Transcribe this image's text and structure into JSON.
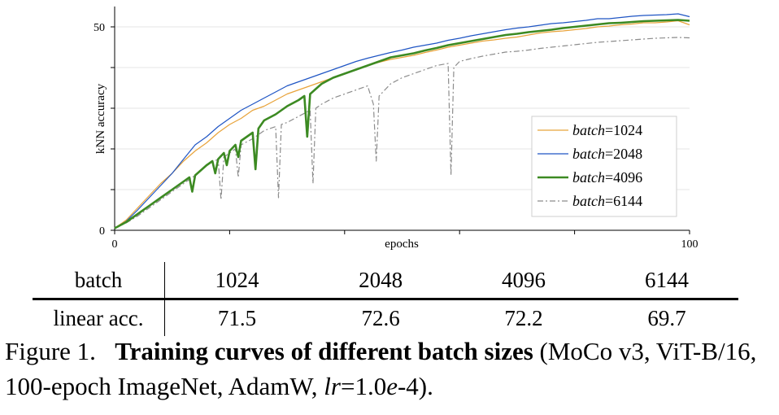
{
  "chart_data": {
    "type": "line",
    "xlabel": "epochs",
    "ylabel": "kNN accuracy",
    "xlim": [
      0,
      100
    ],
    "ylim": [
      0,
      55
    ],
    "x_ticks": [
      0,
      100
    ],
    "x_minor_ticks": [
      20,
      40,
      60,
      80
    ],
    "y_ticks": [
      0,
      50
    ],
    "y_minor_ticks": [
      10,
      20,
      30,
      40
    ],
    "grid": true,
    "legend_position": "bottom-right",
    "legend_prefix": "batch",
    "legend_sep": "=",
    "series": [
      {
        "name": "1024",
        "color": "#E8A33A",
        "style": "solid",
        "x": [
          0,
          2,
          4,
          6,
          8,
          10,
          12,
          14,
          16,
          18,
          20,
          22,
          24,
          26,
          28,
          30,
          32,
          34,
          36,
          38,
          40,
          42,
          44,
          46,
          48,
          50,
          52,
          54,
          56,
          58,
          60,
          62,
          64,
          66,
          68,
          70,
          72,
          74,
          76,
          78,
          80,
          82,
          84,
          86,
          88,
          90,
          92,
          94,
          96,
          98,
          100
        ],
        "y": [
          0.5,
          2.5,
          5.5,
          8.5,
          11.5,
          14,
          17,
          19.5,
          21.5,
          24,
          26,
          27.5,
          29.5,
          30.5,
          32,
          33.5,
          34.5,
          35.5,
          36.5,
          37.5,
          38.5,
          39.5,
          40.5,
          41.3,
          42,
          42.5,
          43,
          43.7,
          44.3,
          45,
          45.5,
          46,
          46.5,
          46.8,
          47.2,
          47.5,
          48,
          48.5,
          48.8,
          49,
          49.3,
          49.6,
          50,
          50.2,
          50.5,
          50.7,
          51,
          51,
          51.2,
          51.5,
          50.5
        ]
      },
      {
        "name": "2048",
        "color": "#1F55C4",
        "style": "solid",
        "x": [
          0,
          2,
          4,
          6,
          8,
          10,
          12,
          14,
          16,
          18,
          20,
          22,
          24,
          26,
          28,
          30,
          32,
          34,
          36,
          38,
          40,
          42,
          44,
          46,
          48,
          50,
          52,
          54,
          56,
          58,
          60,
          62,
          64,
          66,
          68,
          70,
          72,
          74,
          76,
          78,
          80,
          82,
          84,
          86,
          88,
          90,
          92,
          94,
          96,
          98,
          100
        ],
        "y": [
          0.5,
          2.2,
          5,
          8,
          11,
          14,
          17.5,
          21,
          23,
          25.5,
          27.5,
          29.5,
          31,
          32.5,
          34,
          35.5,
          36.5,
          37.5,
          38.5,
          39.5,
          40.5,
          41.5,
          42.3,
          43,
          43.7,
          44.3,
          45,
          45.5,
          46,
          46.7,
          47.2,
          47.8,
          48.3,
          48.8,
          49.3,
          49.7,
          50,
          50.4,
          50.8,
          51,
          51.3,
          51.6,
          52,
          52,
          52.3,
          52.6,
          52.8,
          52.9,
          53,
          53.2,
          52.5
        ]
      },
      {
        "name": "4096",
        "color": "#3C8A22",
        "style": "solid",
        "thick": true,
        "x": [
          0,
          2,
          4,
          6,
          8,
          10,
          12,
          13,
          13.5,
          14,
          16,
          17,
          17.5,
          18,
          19,
          19.5,
          20,
          21,
          21.5,
          22,
          24,
          24.5,
          25,
          26,
          28,
          30,
          32,
          33,
          33.5,
          34,
          36,
          38,
          40,
          42,
          44,
          46,
          48,
          50,
          52,
          54,
          56,
          58,
          60,
          62,
          64,
          66,
          68,
          70,
          72,
          74,
          76,
          78,
          80,
          82,
          84,
          86,
          88,
          90,
          92,
          94,
          96,
          98,
          100
        ],
        "y": [
          0.5,
          2,
          4,
          6,
          8,
          10,
          12,
          13,
          9.5,
          13.5,
          16,
          17,
          14,
          17.5,
          19,
          16,
          19.5,
          21,
          18,
          22,
          24,
          15,
          25,
          27,
          28.5,
          30.5,
          32,
          33,
          23,
          33.5,
          36,
          37.5,
          38.5,
          39.5,
          40.5,
          41.5,
          42.5,
          43,
          43.5,
          44.2,
          44.8,
          45.5,
          46,
          46.5,
          47,
          47.5,
          48,
          48.3,
          48.7,
          49,
          49.3,
          49.7,
          50,
          50.3,
          50.6,
          50.9,
          51,
          51.2,
          51.4,
          51.5,
          51.6,
          51.7,
          51.5
        ]
      },
      {
        "name": "6144",
        "color": "#8C8C8C",
        "style": "dashdot",
        "x": [
          0,
          2,
          4,
          6,
          8,
          10,
          12,
          14,
          16,
          18,
          18.5,
          19,
          20,
          21,
          21.5,
          22,
          24,
          26,
          28,
          28.5,
          29,
          30,
          32,
          34,
          34.5,
          35,
          36,
          38,
          40,
          42,
          44,
          45,
          45.5,
          46,
          48,
          50,
          52,
          54,
          56,
          58,
          58.5,
          59,
          60,
          62,
          64,
          66,
          68,
          70,
          72,
          74,
          76,
          78,
          80,
          82,
          84,
          86,
          88,
          90,
          92,
          94,
          96,
          98,
          100
        ],
        "y": [
          0.5,
          1.8,
          3.5,
          5.5,
          7.5,
          9.5,
          11.5,
          13.5,
          16,
          17.5,
          7.5,
          18,
          19,
          20,
          13,
          21,
          22.5,
          24.5,
          25.5,
          8,
          26,
          26.5,
          28,
          29.5,
          11.5,
          30,
          31,
          32.5,
          33.5,
          34.5,
          35.5,
          31,
          17,
          33,
          36,
          37.5,
          38.5,
          39.5,
          40.5,
          41,
          13.5,
          40,
          41.5,
          42.2,
          42.8,
          43.3,
          43.8,
          44,
          44.3,
          44.7,
          45,
          45.3,
          45.6,
          45.9,
          46.2,
          46.4,
          46.6,
          46.8,
          47,
          47.2,
          47.3,
          47.4,
          47.3
        ]
      }
    ]
  },
  "table": {
    "header_label": "batch",
    "row_label": "linear acc.",
    "columns": [
      "1024",
      "2048",
      "4096",
      "6144"
    ],
    "values": [
      "71.5",
      "72.6",
      "72.2",
      "69.7"
    ]
  },
  "caption": {
    "label": "Figure 1.",
    "bold": "Training curves of different batch sizes",
    "rest1": "(MoCo v3, ViT-B/16, 100-epoch ImageNet, AdamW,",
    "lr_symbol": "lr",
    "lr_value_a": "=1.0",
    "lr_e": "e",
    "lr_value_b": "-4)."
  }
}
